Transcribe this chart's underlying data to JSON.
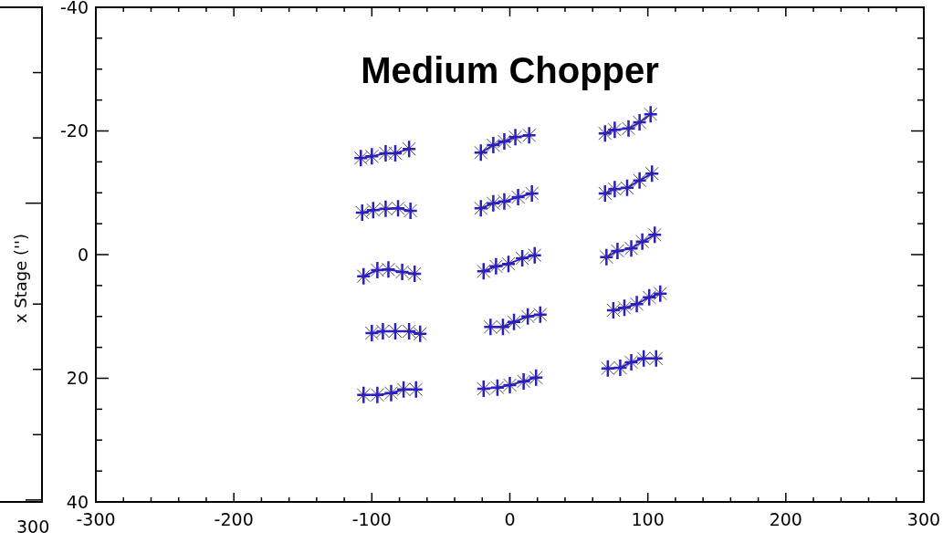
{
  "chart_data": {
    "type": "line",
    "title": "Medium Chopper",
    "ylabel": "x Stage ('')",
    "annotations": [
      "300"
    ],
    "marker": "cross",
    "line_style": "solid",
    "xlim": [
      -300,
      300
    ],
    "ylim": [
      40,
      -40
    ],
    "xticks": [
      -300,
      {
        "value": -280,
        "label": null
      },
      {
        "value": -260,
        "label": null
      },
      {
        "value": -240,
        "label": null
      },
      {
        "value": -220,
        "label": null
      },
      -200,
      {
        "value": -180,
        "label": null
      },
      {
        "value": -160,
        "label": null
      },
      {
        "value": -140,
        "label": null
      },
      {
        "value": -120,
        "label": null
      },
      -100,
      {
        "value": -80,
        "label": null
      },
      {
        "value": -60,
        "label": null
      },
      {
        "value": -40,
        "label": null
      },
      {
        "value": -20,
        "label": null
      },
      0,
      {
        "value": 20,
        "label": null
      },
      {
        "value": 40,
        "label": null
      },
      {
        "value": 60,
        "label": null
      },
      {
        "value": 80,
        "label": null
      },
      100,
      {
        "value": 120,
        "label": null
      },
      {
        "value": 140,
        "label": null
      },
      {
        "value": 160,
        "label": null
      },
      {
        "value": 180,
        "label": null
      },
      200,
      {
        "value": 220,
        "label": null
      },
      {
        "value": 240,
        "label": null
      },
      {
        "value": 260,
        "label": null
      },
      {
        "value": 280,
        "label": null
      },
      300
    ],
    "yticks": [
      -40,
      {
        "value": -35,
        "label": null
      },
      {
        "value": -30,
        "label": null
      },
      {
        "value": -25,
        "label": null
      },
      -20,
      {
        "value": -15,
        "label": null
      },
      {
        "value": -10,
        "label": null
      },
      {
        "value": -5,
        "label": null
      },
      0,
      {
        "value": 5,
        "label": null
      },
      {
        "value": 10,
        "label": null
      },
      {
        "value": 15,
        "label": null
      },
      20,
      {
        "value": 25,
        "label": null
      },
      {
        "value": 30,
        "label": null
      },
      {
        "value": 35,
        "label": null
      },
      40
    ],
    "series": [
      {
        "color": "#2b1fc0",
        "x": [
          -108,
          -100,
          -90,
          -83,
          -73
        ],
        "values": [
          -15.6,
          -15.9,
          -16.4,
          -16.4,
          -17.1
        ]
      },
      {
        "color": "#2b1fc0",
        "x": [
          -107,
          -99,
          -90,
          -81,
          -72
        ],
        "values": [
          -6.8,
          -7.2,
          -7.4,
          -7.5,
          -7.1
        ]
      },
      {
        "color": "#2b1fc0",
        "x": [
          -106,
          -96,
          -88,
          -78,
          -69
        ],
        "values": [
          3.5,
          2.5,
          2.4,
          2.8,
          3.1
        ]
      },
      {
        "color": "#2b1fc0",
        "x": [
          -100,
          -92,
          -83,
          -73,
          -65
        ],
        "values": [
          12.7,
          12.4,
          12.4,
          12.4,
          12.8
        ]
      },
      {
        "color": "#2b1fc0",
        "x": [
          -106,
          -96,
          -86,
          -77,
          -68
        ],
        "values": [
          22.7,
          22.7,
          22.4,
          21.8,
          21.8
        ]
      },
      {
        "color": "#2b1fc0",
        "x": [
          -21,
          -12,
          -4,
          4,
          14
        ],
        "values": [
          -16.5,
          -17.7,
          -18.3,
          -19.0,
          -19.3
        ]
      },
      {
        "color": "#2b1fc0",
        "x": [
          -21,
          -12,
          -4,
          6,
          16
        ],
        "values": [
          -7.5,
          -8.3,
          -8.6,
          -9.3,
          -9.9
        ]
      },
      {
        "color": "#2b1fc0",
        "x": [
          -19,
          -10,
          -1,
          9,
          18
        ],
        "values": [
          2.7,
          1.9,
          1.5,
          0.6,
          0.1
        ]
      },
      {
        "color": "#2b1fc0",
        "x": [
          -14,
          -5,
          3,
          13,
          22
        ],
        "values": [
          11.7,
          11.7,
          10.9,
          10.0,
          9.7
        ]
      },
      {
        "color": "#2b1fc0",
        "x": [
          -19,
          -9,
          0,
          10,
          19
        ],
        "values": [
          21.7,
          21.5,
          21.1,
          20.5,
          19.9
        ]
      },
      {
        "color": "#2b1fc0",
        "x": [
          69,
          76,
          86,
          94,
          102
        ],
        "values": [
          -19.6,
          -20.2,
          -20.4,
          -21.4,
          -22.7
        ]
      },
      {
        "color": "#2b1fc0",
        "x": [
          69,
          76,
          85,
          94,
          103
        ],
        "values": [
          -9.9,
          -10.6,
          -10.8,
          -12.0,
          -13.1
        ]
      },
      {
        "color": "#2b1fc0",
        "x": [
          70,
          78,
          88,
          96,
          105
        ],
        "values": [
          0.4,
          -0.6,
          -1.0,
          -2.1,
          -3.2
        ]
      },
      {
        "color": "#2b1fc0",
        "x": [
          75,
          83,
          92,
          101,
          109
        ],
        "values": [
          9.0,
          8.6,
          8.0,
          6.9,
          6.3
        ]
      },
      {
        "color": "#2b1fc0",
        "x": [
          71,
          80,
          88,
          97,
          106
        ],
        "values": [
          18.4,
          18.3,
          17.4,
          16.8,
          16.8
        ]
      }
    ]
  }
}
